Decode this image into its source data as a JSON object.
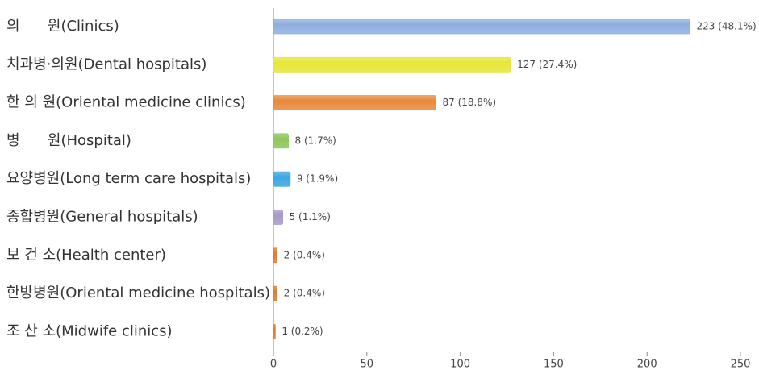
{
  "chart_data": {
    "type": "bar",
    "orientation": "horizontal",
    "categories": [
      "의      원(Clinics)",
      "치과병·의원(Dental hospitals)",
      "한 의 원(Oriental medicine clinics)",
      "병      원(Hospital)",
      "요양병원(Long term care hospitals)",
      "종합병원(General hospitals)",
      "보 건 소(Health center)",
      "한방병원(Oriental medicine hospitals)",
      "조 산 소(Midwife clinics)"
    ],
    "values": [
      223,
      127,
      87,
      8,
      9,
      5,
      2,
      2,
      1
    ],
    "value_labels": [
      "223 (48.1%)",
      "127 (27.4%)",
      "87 (18.8%)",
      "8 (1.7%)",
      "9 (1.9%)",
      "5 (1.1%)",
      "2 (0.4%)",
      "2 (0.4%)",
      "1 (0.2%)"
    ],
    "colors": [
      "#8eaee0",
      "#e6e63a",
      "#e8893a",
      "#8cc65a",
      "#3aa6e2",
      "#a898c8",
      "#e07a30",
      "#e07a30",
      "#e07a30"
    ],
    "xlim": [
      0,
      250
    ],
    "xticks": [
      0,
      50,
      100,
      150,
      200,
      250
    ]
  }
}
